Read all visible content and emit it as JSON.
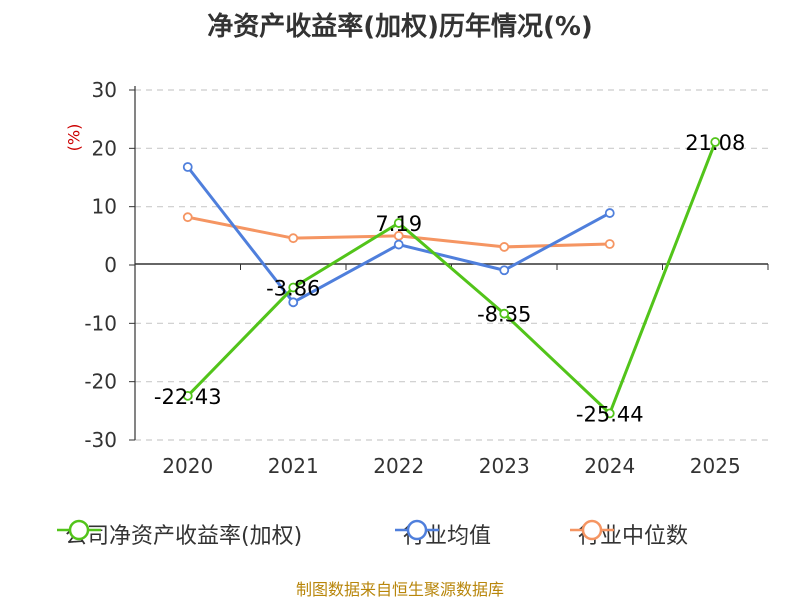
{
  "chart_data": {
    "type": "line",
    "title": "净资产收益率(加权)历年情况(%)",
    "ylabel": "(%)",
    "categories": [
      "2020",
      "2021",
      "2022",
      "2023",
      "2024",
      "2025"
    ],
    "yticks": [
      "30",
      "20",
      "10",
      "0",
      "-10",
      "-20",
      "-30"
    ],
    "ylim": [
      -30,
      30
    ],
    "grid": true,
    "legend_position": "bottom",
    "series": [
      {
        "name": "公司净资产收益率(加权)",
        "color": "#52c41a",
        "values": [
          -22.43,
          -3.86,
          7.19,
          -8.35,
          -25.44,
          21.08
        ],
        "labels": [
          "-22.43",
          "-3.86",
          "7.19",
          "-8.35",
          "-25.44",
          "21.08"
        ]
      },
      {
        "name": "行业均值",
        "color": "#4f7fdc",
        "values": [
          16.8,
          -6.4,
          3.5,
          -0.9,
          8.9,
          null
        ]
      },
      {
        "name": "行业中位数",
        "color": "#f59562",
        "values": [
          8.2,
          4.6,
          5.0,
          3.1,
          3.6,
          null
        ]
      }
    ]
  },
  "source": "制图数据来自恒生聚源数据库"
}
